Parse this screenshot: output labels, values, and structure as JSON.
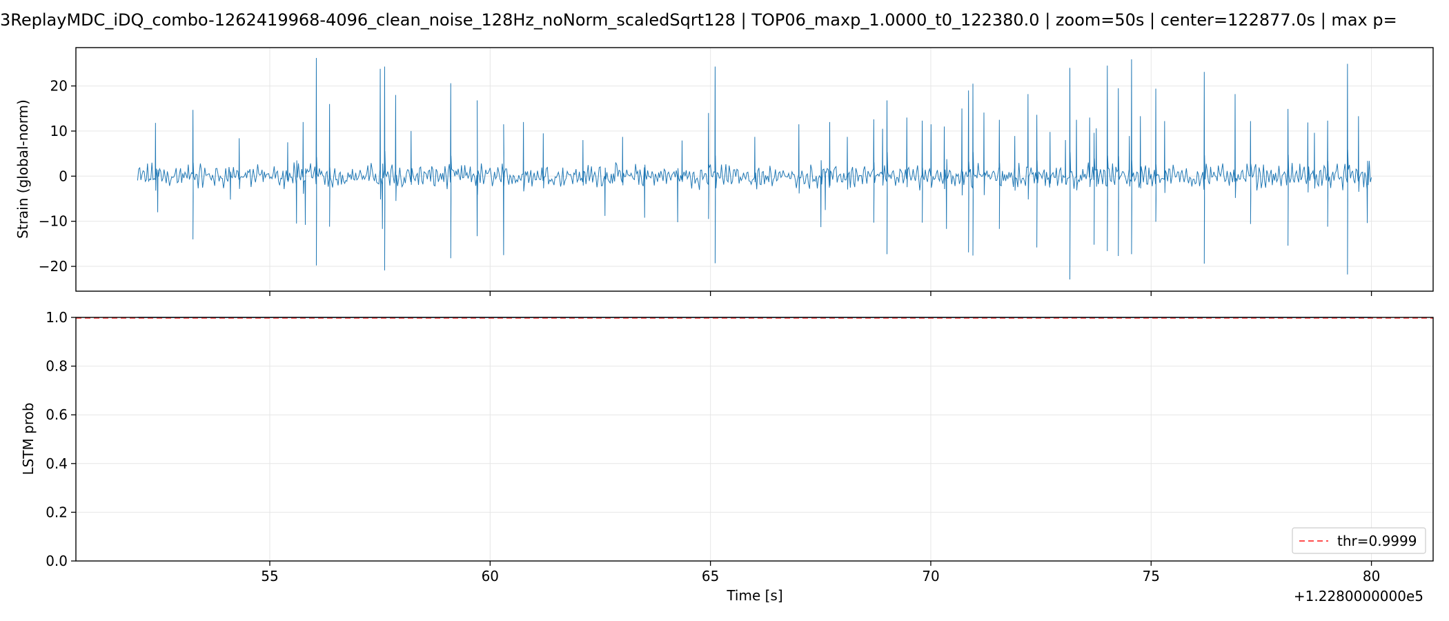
{
  "figure": {
    "title": "3ReplayMDC_iDQ_combo-1262419968-4096_clean_noise_128Hz_noNorm_scaledSqrt128 | TOP06_maxp_1.0000_t0_122380.0 | zoom=50s | center=122877.0s | max p=",
    "x_offset_label": "+1.2280000000e5",
    "xlabel": "Time [s]"
  },
  "chart_data": [
    {
      "type": "line",
      "panel": "top",
      "ylabel": "Strain (global-norm)",
      "xlim": [
        50.6,
        81.4
      ],
      "ylim": [
        -25.5,
        28.5
      ],
      "x_ticks": [
        55,
        60,
        65,
        70,
        75,
        80
      ],
      "y_ticks": [
        -20,
        -10,
        0,
        10,
        20
      ],
      "y_tick_labels": [
        "−20",
        "−10",
        "0",
        "10",
        "20"
      ],
      "grid": true,
      "color": "#1f77b4",
      "x_range": [
        52.0,
        80.0
      ],
      "sample_step": 0.025,
      "spikes": [
        [
          52.4,
          11.8
        ],
        [
          52.45,
          -8.0
        ],
        [
          53.25,
          14.7
        ],
        [
          53.25,
          -14.0
        ],
        [
          54.1,
          -5.2
        ],
        [
          54.3,
          8.4
        ],
        [
          55.4,
          7.5
        ],
        [
          55.6,
          -10.5
        ],
        [
          55.75,
          12.0
        ],
        [
          55.8,
          -10.8
        ],
        [
          56.05,
          26.2
        ],
        [
          56.05,
          -19.8
        ],
        [
          56.35,
          16.0
        ],
        [
          56.35,
          -11.2
        ],
        [
          57.5,
          23.8
        ],
        [
          57.55,
          -11.7
        ],
        [
          57.6,
          24.3
        ],
        [
          57.6,
          -20.9
        ],
        [
          57.85,
          18.0
        ],
        [
          58.2,
          10.0
        ],
        [
          59.1,
          20.6
        ],
        [
          59.1,
          -18.2
        ],
        [
          59.7,
          -13.3
        ],
        [
          59.7,
          16.8
        ],
        [
          60.3,
          -17.5
        ],
        [
          60.3,
          11.5
        ],
        [
          60.75,
          12.0
        ],
        [
          61.2,
          9.5
        ],
        [
          62.1,
          8.0
        ],
        [
          62.6,
          -8.8
        ],
        [
          63.0,
          8.7
        ],
        [
          63.5,
          -9.2
        ],
        [
          64.25,
          -10.2
        ],
        [
          64.35,
          7.9
        ],
        [
          64.95,
          14.0
        ],
        [
          64.95,
          -9.5
        ],
        [
          65.1,
          24.3
        ],
        [
          65.1,
          -19.3
        ],
        [
          66.0,
          8.7
        ],
        [
          67.0,
          11.5
        ],
        [
          67.5,
          -11.3
        ],
        [
          67.7,
          12.0
        ],
        [
          67.6,
          -7.5
        ],
        [
          68.1,
          8.7
        ],
        [
          68.7,
          12.6
        ],
        [
          68.7,
          -10.3
        ],
        [
          68.9,
          10.5
        ],
        [
          69.0,
          16.8
        ],
        [
          69.0,
          -17.3
        ],
        [
          69.45,
          13.0
        ],
        [
          69.8,
          12.3
        ],
        [
          69.8,
          -10.3
        ],
        [
          70.0,
          11.5
        ],
        [
          70.3,
          11.0
        ],
        [
          70.35,
          -11.7
        ],
        [
          70.7,
          15.0
        ],
        [
          70.85,
          19.0
        ],
        [
          70.85,
          -16.9
        ],
        [
          70.95,
          20.5
        ],
        [
          70.95,
          -17.6
        ],
        [
          71.2,
          14.1
        ],
        [
          71.55,
          12.5
        ],
        [
          71.55,
          -11.7
        ],
        [
          71.9,
          8.9
        ],
        [
          72.2,
          18.2
        ],
        [
          72.4,
          13.6
        ],
        [
          72.4,
          -15.8
        ],
        [
          72.7,
          9.8
        ],
        [
          73.05,
          8.0
        ],
        [
          73.15,
          24.0
        ],
        [
          73.15,
          -22.9
        ],
        [
          73.3,
          12.5
        ],
        [
          73.6,
          13.0
        ],
        [
          73.7,
          9.6
        ],
        [
          73.7,
          -15.2
        ],
        [
          73.75,
          10.6
        ],
        [
          74.0,
          24.5
        ],
        [
          74.0,
          -16.6
        ],
        [
          74.25,
          19.5
        ],
        [
          74.25,
          -17.7
        ],
        [
          74.5,
          8.9
        ],
        [
          74.55,
          25.9
        ],
        [
          74.55,
          -17.3
        ],
        [
          74.75,
          13.3
        ],
        [
          75.1,
          19.4
        ],
        [
          75.1,
          -10.1
        ],
        [
          75.3,
          12.2
        ],
        [
          76.2,
          23.1
        ],
        [
          76.2,
          -19.4
        ],
        [
          76.9,
          18.2
        ],
        [
          77.25,
          12.2
        ],
        [
          77.25,
          -10.6
        ],
        [
          78.1,
          14.9
        ],
        [
          78.1,
          -15.4
        ],
        [
          78.55,
          11.9
        ],
        [
          78.7,
          9.6
        ],
        [
          79.0,
          12.3
        ],
        [
          79.0,
          -11.2
        ],
        [
          79.45,
          24.9
        ],
        [
          79.45,
          -21.8
        ],
        [
          79.7,
          13.3
        ],
        [
          79.9,
          -10.4
        ]
      ]
    },
    {
      "type": "line",
      "panel": "bottom",
      "ylabel": "LSTM prob",
      "xlim": [
        50.6,
        81.4
      ],
      "ylim": [
        0.0,
        1.0
      ],
      "x_ticks": [
        55,
        60,
        65,
        70,
        75,
        80
      ],
      "x_tick_labels": [
        "55",
        "60",
        "65",
        "70",
        "75",
        "80"
      ],
      "y_ticks": [
        0.0,
        0.2,
        0.4,
        0.6,
        0.8,
        1.0
      ],
      "y_tick_labels": [
        "0.0",
        "0.2",
        "0.4",
        "0.6",
        "0.8",
        "1.0"
      ],
      "grid": true,
      "series": [
        {
          "name": "",
          "color": "#1f77b4",
          "x": [
            52.0,
            80.0
          ],
          "y": [
            1.0,
            1.0
          ]
        }
      ],
      "threshold": {
        "name": "thr=0.9999",
        "value": 0.9999,
        "color": "#ff0000",
        "style": "dashed"
      },
      "legend_position": "lower-right"
    }
  ]
}
